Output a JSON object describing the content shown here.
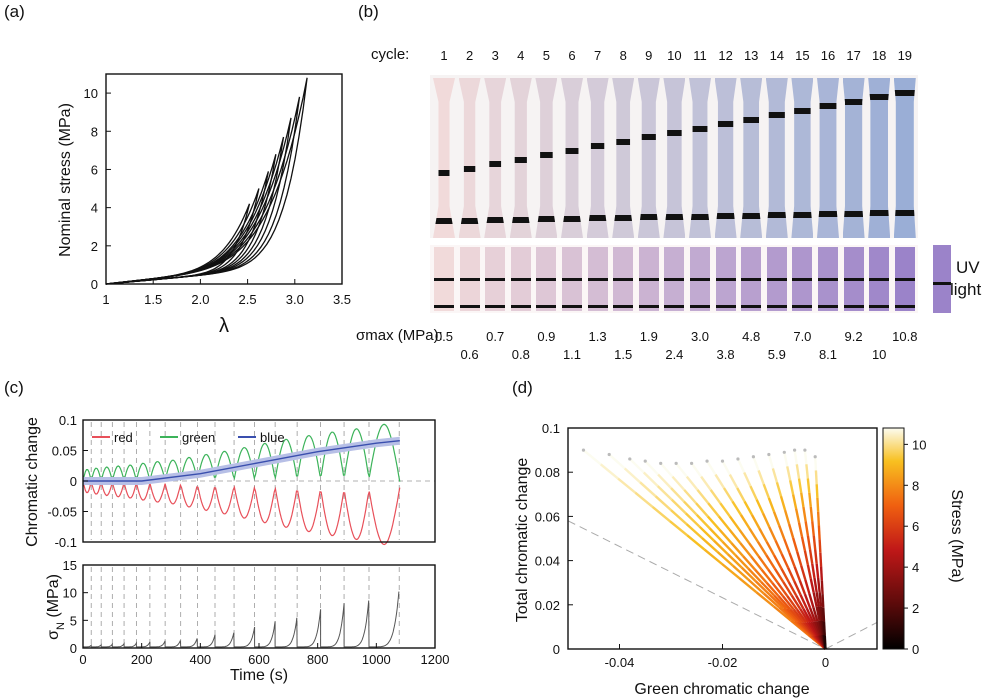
{
  "panels": {
    "a": {
      "label": "(a)",
      "chart_data": {
        "type": "line",
        "xlabel": "λ",
        "ylabel": "Nominal stress (MPa)",
        "xlim": [
          1,
          3.5
        ],
        "ylim": [
          0,
          11
        ],
        "xticks": [
          "1",
          "1.5",
          "2.0",
          "2.5",
          "3.0",
          "3.5"
        ],
        "yticks": [
          "0",
          "2",
          "4",
          "6",
          "8",
          "10"
        ],
        "peaks": [
          {
            "lambda_max": 2.52,
            "stress_max": 4.2
          },
          {
            "lambda_max": 2.62,
            "stress_max": 5.0
          },
          {
            "lambda_max": 2.72,
            "stress_max": 5.9
          },
          {
            "lambda_max": 2.8,
            "stress_max": 6.8
          },
          {
            "lambda_max": 2.88,
            "stress_max": 7.7
          },
          {
            "lambda_max": 2.96,
            "stress_max": 8.7
          },
          {
            "lambda_max": 3.05,
            "stress_max": 9.8
          },
          {
            "lambda_max": 3.13,
            "stress_max": 10.8
          }
        ]
      }
    },
    "b": {
      "label": "(b)",
      "cycle_label": "cycle:",
      "cycles": [
        "1",
        "2",
        "3",
        "4",
        "5",
        "6",
        "7",
        "8",
        "9",
        "10",
        "11",
        "12",
        "13",
        "14",
        "15",
        "16",
        "17",
        "18",
        "19"
      ],
      "sigma_label": "σmax (MPa):",
      "sigma_top": [
        "0.5",
        "0.7",
        "0.9",
        "1.3",
        "1.9",
        "3.0",
        "4.8",
        "7.0",
        "9.2",
        "10.8"
      ],
      "sigma_bottom": [
        "0.6",
        "0.8",
        "1.1",
        "1.5",
        "2.4",
        "3.8",
        "5.9",
        "8.1",
        "10"
      ],
      "uv_label_1": "UV",
      "uv_label_2": "light",
      "colors": {
        "pink": "#f1dada",
        "blue": "#9aaed6",
        "violet": "#9b83c9"
      }
    },
    "c": {
      "label": "(c)",
      "chart_data": [
        {
          "type": "line",
          "ylabel": "Chromatic change",
          "ylim": [
            -0.1,
            0.1
          ],
          "yticks": [
            "0.1",
            "0.05",
            "0",
            "-0.05",
            "-0.1"
          ],
          "legend": [
            "red",
            "green",
            "blue"
          ],
          "legend_position": "top-left",
          "series": [
            {
              "name": "red",
              "color": "#e8505a",
              "trend": "oscillating, amplitude growing to ~-0.06"
            },
            {
              "name": "green",
              "color": "#3cb35a",
              "trend": "oscillating opposite to red, amplitude ~0.04"
            },
            {
              "name": "blue",
              "color": "#3a4fae",
              "x": [
                0,
                200,
                400,
                600,
                800,
                1000,
                1080
              ],
              "values": [
                0,
                0,
                0.012,
                0.03,
                0.048,
                0.062,
                0.066
              ]
            }
          ]
        },
        {
          "type": "line",
          "ylabel": "σN (MPa)",
          "ylabel_main": "σ",
          "ylabel_sub": "N",
          "ylabel_unit": " (MPa)",
          "xlabel": "Time (s)",
          "xlim": [
            0,
            1200
          ],
          "ylim": [
            0,
            15
          ],
          "xticks": [
            "0",
            "200",
            "400",
            "600",
            "800",
            "1000",
            "1200"
          ],
          "yticks": [
            "15",
            "10",
            "5",
            "0"
          ],
          "peaks_time": [
            28,
            62,
            100,
            140,
            182,
            228,
            280,
            333,
            390,
            450,
            515,
            585,
            655,
            730,
            810,
            890,
            975,
            1078
          ],
          "peaks_stress": [
            0.5,
            0.6,
            0.7,
            0.8,
            0.9,
            1.1,
            1.3,
            1.5,
            1.9,
            2.4,
            3.0,
            3.8,
            4.8,
            5.9,
            7.0,
            8.1,
            9.2,
            10.8
          ]
        }
      ]
    },
    "d": {
      "label": "(d)",
      "chart_data": {
        "type": "scatter",
        "xlabel": "Green chromatic change",
        "ylabel": "Total chromatic change",
        "xlim": [
          -0.05,
          0.01
        ],
        "ylim": [
          0,
          0.1
        ],
        "xticks": [
          "-0.04",
          "-0.02",
          "0"
        ],
        "yticks": [
          "0.1",
          "0.08",
          "0.06",
          "0.04",
          "0.02",
          "0"
        ],
        "colorbar_label": "Stress (MPa)",
        "colorbar_ticks": [
          "10",
          "8",
          "6",
          "4",
          "2",
          "0"
        ],
        "colorbar_range": [
          0,
          10.8
        ],
        "fan_endpoints": [
          [
            -0.047,
            0.09
          ],
          [
            -0.042,
            0.088
          ],
          [
            -0.038,
            0.086
          ],
          [
            -0.035,
            0.085
          ],
          [
            -0.032,
            0.084
          ],
          [
            -0.029,
            0.084
          ],
          [
            -0.026,
            0.084
          ],
          [
            -0.023,
            0.085
          ],
          [
            -0.02,
            0.085
          ],
          [
            -0.017,
            0.086
          ],
          [
            -0.014,
            0.087
          ],
          [
            -0.011,
            0.088
          ],
          [
            -0.008,
            0.089
          ],
          [
            -0.006,
            0.09
          ],
          [
            -0.004,
            0.09
          ],
          [
            -0.002,
            0.087
          ]
        ]
      }
    }
  }
}
